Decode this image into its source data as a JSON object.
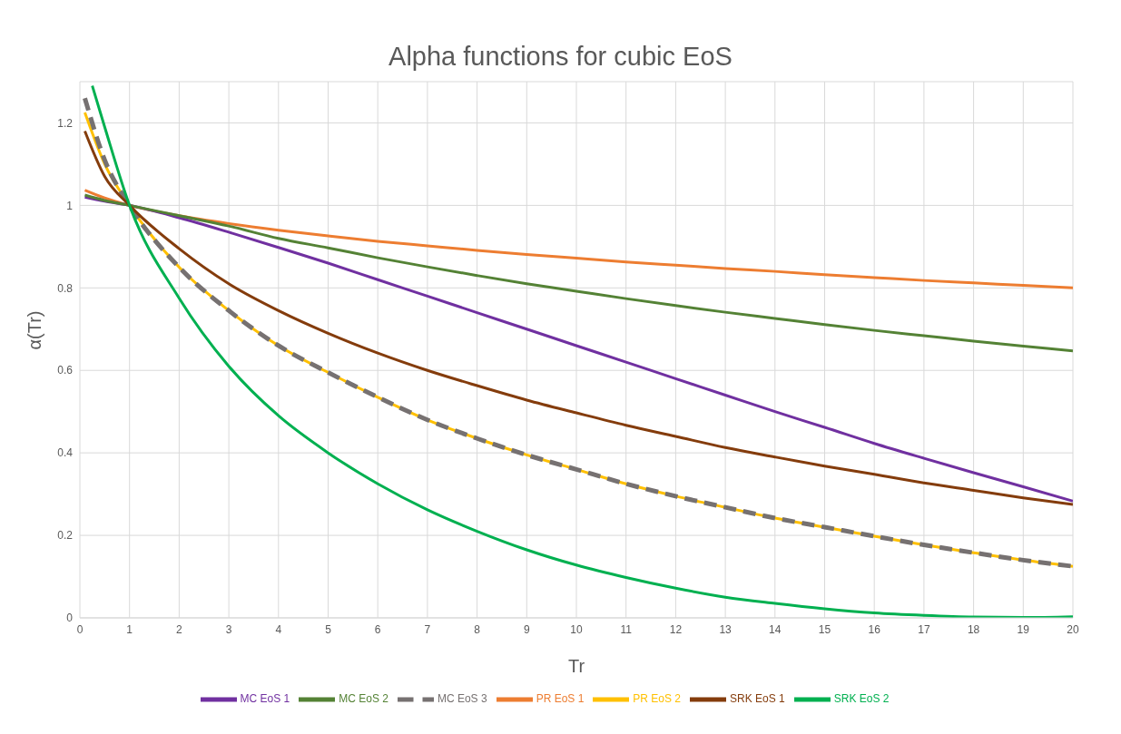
{
  "chart_data": {
    "type": "line",
    "title": "Alpha functions for cubic EoS",
    "xlabel": "Tr",
    "ylabel": "α(Tr)",
    "x": [
      0.1,
      0.5,
      1,
      2,
      3,
      4,
      5,
      6,
      7,
      8,
      9,
      10,
      11,
      12,
      13,
      14,
      15,
      16,
      17,
      18,
      19,
      20
    ],
    "series": [
      {
        "name": "PR EoS 1",
        "color": "#ed7d31",
        "values": [
          1.037,
          1.018,
          1.0,
          0.975,
          0.956,
          0.94,
          0.926,
          0.913,
          0.902,
          0.891,
          0.881,
          0.872,
          0.863,
          0.855,
          0.847,
          0.84,
          0.832,
          0.825,
          0.818,
          0.812,
          0.806,
          0.8
        ]
      },
      {
        "name": "PR EoS 2",
        "color": "#ffc000",
        "values": [
          1.225,
          1.1,
          1.0,
          0.85,
          0.745,
          0.66,
          0.595,
          0.535,
          0.48,
          0.435,
          0.395,
          0.36,
          0.325,
          0.295,
          0.268,
          0.242,
          0.22,
          0.198,
          0.177,
          0.158,
          0.14,
          0.125
        ]
      },
      {
        "name": "MC EoS 1",
        "color": "#7030a0",
        "values": [
          1.02,
          1.01,
          1.0,
          0.97,
          0.935,
          0.898,
          0.86,
          0.82,
          0.78,
          0.74,
          0.7,
          0.66,
          0.62,
          0.58,
          0.54,
          0.5,
          0.462,
          0.423,
          0.387,
          0.352,
          0.318,
          0.283
        ]
      },
      {
        "name": "MC EoS 2",
        "color": "#548235",
        "values": [
          1.025,
          1.012,
          1.0,
          0.975,
          0.95,
          0.92,
          0.897,
          0.873,
          0.851,
          0.83,
          0.81,
          0.792,
          0.774,
          0.757,
          0.741,
          0.726,
          0.711,
          0.697,
          0.684,
          0.671,
          0.659,
          0.647
        ]
      },
      {
        "name": "MC EoS 3",
        "color": "#767171",
        "line_style": "dashed",
        "values": [
          1.26,
          1.11,
          1.0,
          0.85,
          0.745,
          0.66,
          0.595,
          0.535,
          0.48,
          0.435,
          0.395,
          0.36,
          0.325,
          0.295,
          0.268,
          0.242,
          0.22,
          0.198,
          0.177,
          0.158,
          0.14,
          0.125
        ]
      },
      {
        "name": "SRK EoS 1",
        "color": "#843c0c",
        "values": [
          1.18,
          1.07,
          1.0,
          0.895,
          0.81,
          0.745,
          0.69,
          0.642,
          0.6,
          0.563,
          0.528,
          0.497,
          0.467,
          0.44,
          0.413,
          0.39,
          0.368,
          0.348,
          0.327,
          0.309,
          0.291,
          0.275
        ]
      },
      {
        "name": "SRK EoS 2",
        "color": "#00b050",
        "x": [
          0.25,
          0.5,
          1,
          2,
          3,
          4,
          5,
          6,
          7,
          8,
          9,
          10,
          11,
          12,
          13,
          14,
          15,
          16,
          17,
          18,
          19,
          20
        ],
        "values": [
          1.29,
          1.19,
          1.0,
          0.775,
          0.61,
          0.49,
          0.4,
          0.325,
          0.262,
          0.21,
          0.165,
          0.128,
          0.098,
          0.072,
          0.05,
          0.035,
          0.022,
          0.012,
          0.006,
          0.002,
          0.001,
          0.003
        ]
      }
    ],
    "xlim": [
      0,
      20
    ],
    "xticks": [
      0,
      1,
      2,
      3,
      4,
      5,
      6,
      7,
      8,
      9,
      10,
      11,
      12,
      13,
      14,
      15,
      16,
      17,
      18,
      19,
      20
    ],
    "ylim": [
      0,
      1.3
    ],
    "yticks": [
      0,
      0.2,
      0.4,
      0.6,
      0.8,
      1,
      1.2
    ],
    "grid": true,
    "legend": "bottom",
    "marker": "none",
    "line_style": "solid"
  }
}
